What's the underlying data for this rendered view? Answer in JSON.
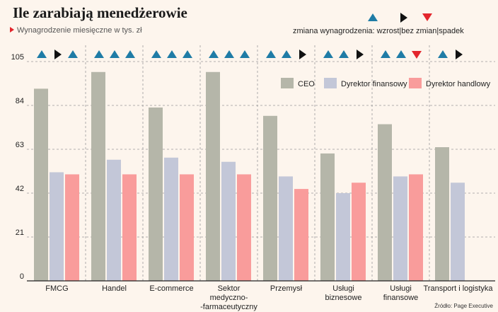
{
  "title": "Ile zarabiają menedżerowie",
  "subtitle": "Wynagrodzenie miesięczne w tys. zł",
  "change_legend": {
    "label": "zmiana wynagrodzenia: wzrost|bez zmian|spadek",
    "symbols": [
      "up",
      "none",
      "down"
    ]
  },
  "source": "Źródło: Page Executive",
  "colors": {
    "ceo": "#b5b6a9",
    "cfo": "#c3c7d8",
    "sales": "#f99c9b",
    "up": "#1f7ca6",
    "none": "#111111",
    "down": "#e3262d"
  },
  "chart_data": {
    "type": "bar",
    "categories": [
      "FMCG",
      "Handel",
      "E-commerce",
      "Sektor medyczno--farmaceutyczny",
      "Przemysł",
      "Usługi biznesowe",
      "Usługi finansowe",
      "Transport i logistyka"
    ],
    "category_lines": [
      [
        "FMCG"
      ],
      [
        "Handel"
      ],
      [
        "E-commerce"
      ],
      [
        "Sektor",
        "medyczno-",
        "-farmaceutyczny"
      ],
      [
        "Przemysł"
      ],
      [
        "Usługi",
        "biznesowe"
      ],
      [
        "Usługi",
        "finansowe"
      ],
      [
        "Transport i logistyka"
      ]
    ],
    "series": [
      {
        "name": "CEO",
        "key": "ceo",
        "values": [
          92,
          100,
          83,
          100,
          79,
          61,
          75,
          64
        ]
      },
      {
        "name": "Dyrektor finansowy",
        "key": "cfo",
        "values": [
          52,
          58,
          59,
          57,
          50,
          42,
          50,
          47
        ]
      },
      {
        "name": "Dyrektor handlowy",
        "key": "sales",
        "values": [
          51,
          51,
          51,
          51,
          44,
          47,
          51,
          null
        ]
      }
    ],
    "changes": [
      [
        "up",
        "none",
        "up"
      ],
      [
        "up",
        "up",
        "up"
      ],
      [
        "up",
        "up",
        "up"
      ],
      [
        "up",
        "up",
        "up"
      ],
      [
        "up",
        "up",
        "none"
      ],
      [
        "up",
        "up",
        "none"
      ],
      [
        "up",
        "up",
        "down"
      ],
      [
        "up",
        "none",
        null
      ]
    ],
    "yticks": [
      0,
      21,
      42,
      63,
      84,
      105
    ],
    "ylim": [
      0,
      105
    ],
    "grid": true,
    "legend_position": "top-right"
  }
}
